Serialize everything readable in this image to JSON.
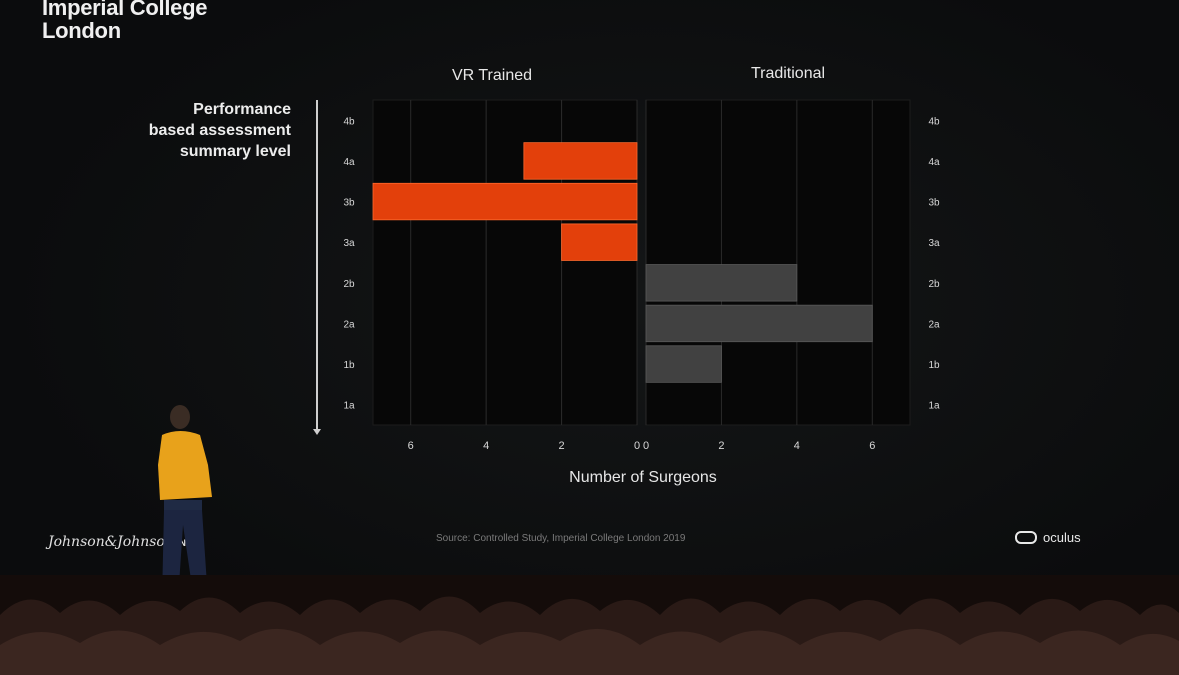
{
  "slide": {
    "brand_line1": "Imperial College",
    "brand_line2": "London",
    "axis_description_line1": "Performance",
    "axis_description_line2": "based assessment",
    "axis_description_line3": "summary level",
    "footer_left": "Johnson&Johnson",
    "footer_left_suffix": "INS",
    "source": "Source: Controlled Study, Imperial College London 2019",
    "footer_right": "oculus"
  },
  "colors": {
    "vr_bar": "#e3400b",
    "traditional_bar": "#414141",
    "panel_bg": "#070707",
    "grid": "#2a2a2a"
  },
  "chart_data": {
    "type": "bar",
    "orientation": "horizontal",
    "categories": [
      "4b",
      "4a",
      "3b",
      "3a",
      "2b",
      "2a",
      "1b",
      "1a"
    ],
    "panels": [
      {
        "name": "VR Trained",
        "values": [
          0,
          3,
          7,
          2,
          0,
          0,
          0,
          0
        ],
        "xlim": [
          7,
          0
        ],
        "ticks": [
          6,
          4,
          2,
          0
        ],
        "direction": "right-to-left"
      },
      {
        "name": "Traditional",
        "values": [
          0,
          0,
          0,
          0,
          4,
          6,
          2,
          0
        ],
        "xlim": [
          0,
          7
        ],
        "ticks": [
          0,
          2,
          4,
          6
        ],
        "direction": "left-to-right"
      }
    ],
    "xlabel": "Number of Surgeons",
    "grid": true
  }
}
